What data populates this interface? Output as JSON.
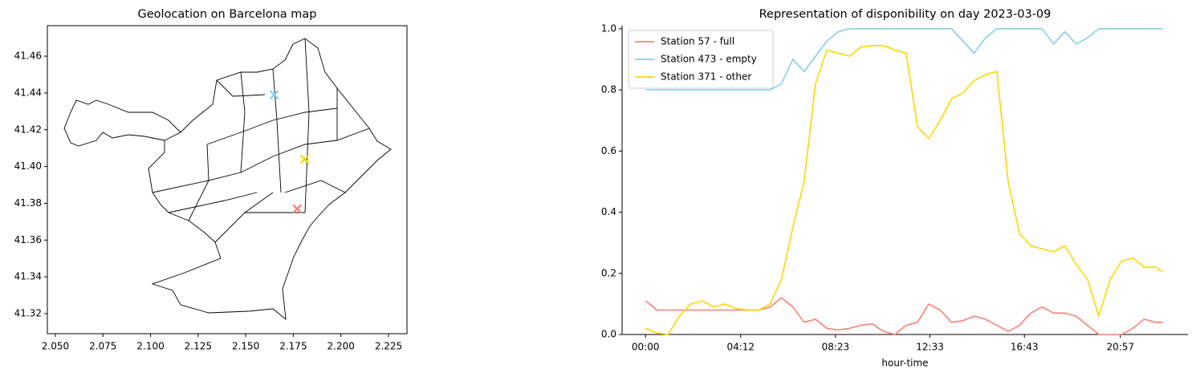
{
  "chart_data": [
    {
      "type": "scatter",
      "title": "Geolocation on Barcelona map",
      "x": [
        2.165,
        2.181,
        2.177
      ],
      "y": [
        41.439,
        41.404,
        41.377
      ],
      "colors": [
        "#87ceeb",
        "#ffd700",
        "#fa8072"
      ],
      "marker": "x",
      "xlim": [
        2.0458,
        2.2347
      ],
      "ylim": [
        41.3091,
        41.4766
      ],
      "xticks": [
        {
          "value": 2.05,
          "label": "2.050"
        },
        2.075,
        {
          "value": 2.1,
          "label": "2.100"
        },
        2.125,
        {
          "value": 2.15,
          "label": "2.150"
        },
        2.175,
        {
          "value": 2.2,
          "label": "2.200"
        },
        2.225
      ],
      "yticks": [
        41.32,
        41.34,
        41.36,
        41.38,
        {
          "value": 41.4,
          "label": "41.40"
        },
        41.42,
        41.44,
        41.46
      ]
    },
    {
      "type": "line",
      "title": "Representation of disponibility on day 2023-03-09",
      "xlabel": "hour-time",
      "x": [
        0,
        30,
        60,
        90,
        120,
        150,
        180,
        210,
        240,
        270,
        300,
        330,
        360,
        390,
        420,
        450,
        480,
        510,
        540,
        570,
        600,
        630,
        660,
        690,
        720,
        750,
        780,
        810,
        840,
        870,
        900,
        930,
        960,
        990,
        1020,
        1050,
        1080,
        1110,
        1140,
        1170,
        1200,
        1230,
        1260,
        1290,
        1320,
        1350,
        1370
      ],
      "series": [
        {
          "name": "Station 57 - full",
          "color": "#fa8072",
          "values": [
            0.11,
            0.08,
            0.08,
            0.08,
            0.08,
            0.08,
            0.08,
            0.08,
            0.08,
            0.08,
            0.08,
            0.09,
            0.12,
            0.09,
            0.04,
            0.05,
            0.02,
            0.015,
            0.02,
            0.03,
            0.035,
            0.01,
            0.0,
            0.03,
            0.04,
            0.1,
            0.08,
            0.04,
            0.045,
            0.06,
            0.05,
            0.03,
            0.01,
            0.03,
            0.07,
            0.09,
            0.07,
            0.07,
            0.06,
            0.03,
            0.0,
            0.0,
            0.0,
            0.02,
            0.05,
            0.04,
            0.04
          ]
        },
        {
          "name": "Station 473 - empty",
          "color": "#87ceeb",
          "values": [
            0.8,
            0.8,
            0.8,
            0.8,
            0.8,
            0.8,
            0.8,
            0.8,
            0.8,
            0.8,
            0.8,
            0.8,
            0.82,
            0.9,
            0.86,
            0.91,
            0.96,
            0.99,
            1.0,
            1.0,
            1.0,
            1.0,
            1.0,
            1.0,
            1.0,
            1.0,
            1.0,
            1.0,
            0.96,
            0.92,
            0.97,
            1.0,
            1.0,
            1.0,
            1.0,
            1.0,
            0.95,
            0.99,
            0.95,
            0.97,
            1.0,
            1.0,
            1.0,
            1.0,
            1.0,
            1.0,
            1.0
          ]
        },
        {
          "name": "Station 371 - other",
          "color": "#ffd700",
          "values": [
            0.02,
            0.005,
            0.0,
            0.06,
            0.1,
            0.11,
            0.09,
            0.1,
            0.085,
            0.08,
            0.08,
            0.1,
            0.18,
            0.35,
            0.5,
            0.82,
            0.93,
            0.92,
            0.91,
            0.94,
            0.945,
            0.945,
            0.93,
            0.92,
            0.68,
            0.64,
            0.7,
            0.77,
            0.79,
            0.83,
            0.85,
            0.86,
            0.5,
            0.33,
            0.29,
            0.28,
            0.27,
            0.29,
            0.23,
            0.18,
            0.06,
            0.18,
            0.24,
            0.25,
            0.22,
            0.22,
            0.205
          ]
        }
      ],
      "xlim": [
        -62,
        1436
      ],
      "ylim": [
        0,
        1.01
      ],
      "xticks": [
        {
          "value": 0,
          "label": "00:00"
        },
        {
          "value": 252,
          "label": "04:12"
        },
        {
          "value": 503,
          "label": "08:23"
        },
        {
          "value": 753,
          "label": "12:33"
        },
        {
          "value": 1003,
          "label": "16:43"
        },
        {
          "value": 1257,
          "label": "20:57"
        }
      ],
      "yticks": [
        {
          "value": 0,
          "label": "0.0"
        },
        0.2,
        0.4,
        0.6,
        0.8,
        {
          "value": 1,
          "label": "1.0"
        }
      ],
      "legend": "upper left"
    }
  ]
}
